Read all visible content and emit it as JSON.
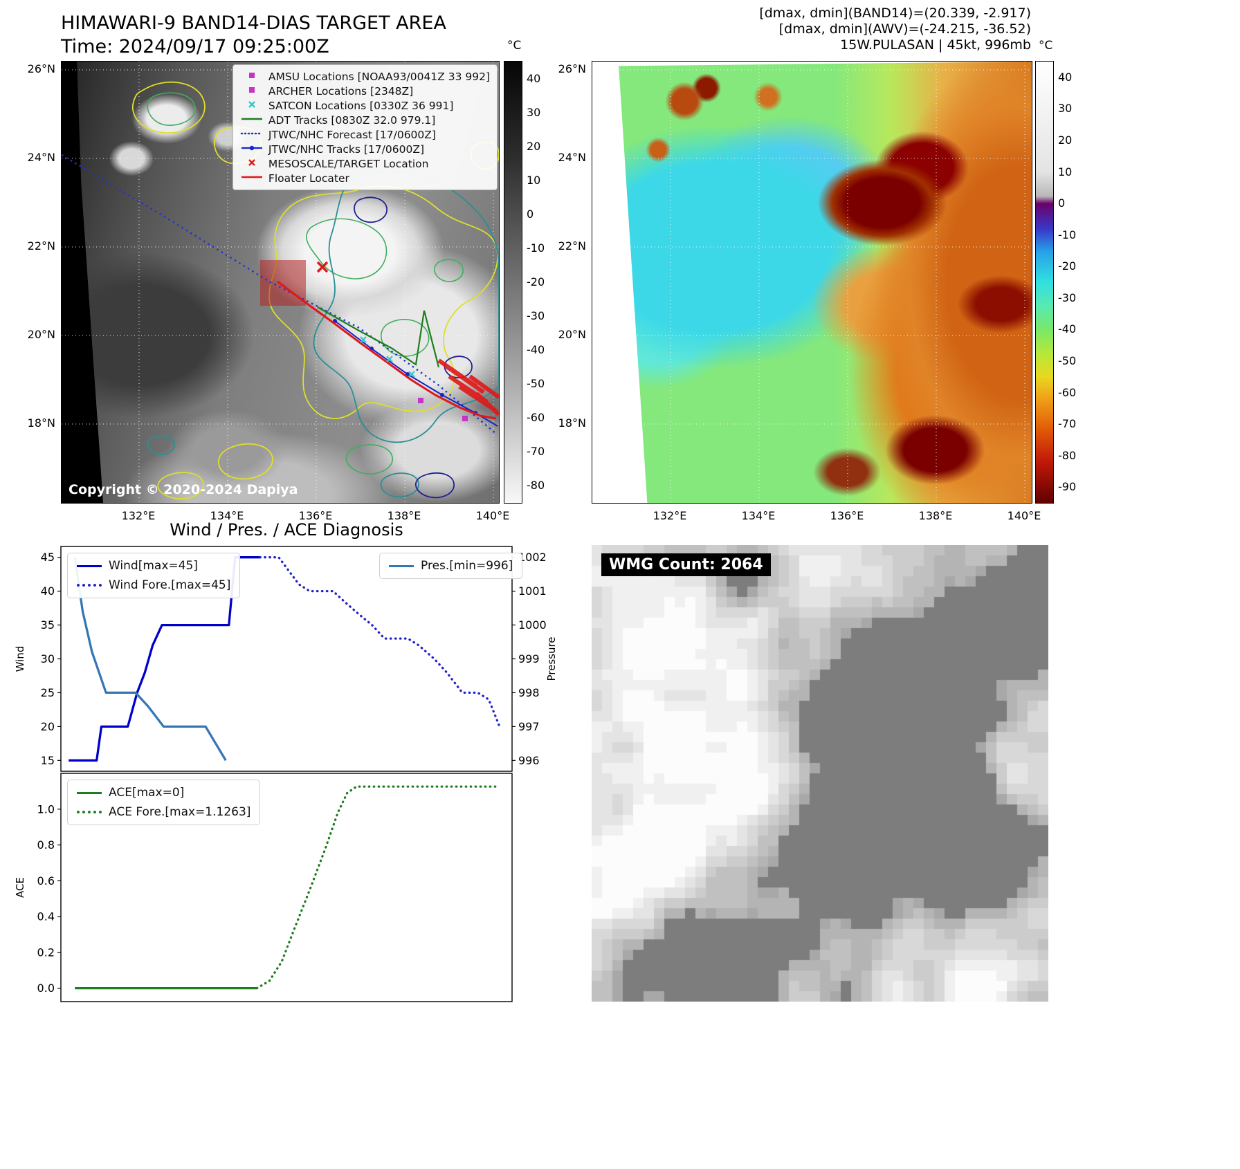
{
  "band14_panel": {
    "title": "HIMAWARI-9 BAND14-DIAS TARGET AREA",
    "subtitle": "Time: 2024/09/17 09:25:00Z",
    "copyright": "Copyright © 2020-2024 Dapiya",
    "lat_ticks": [
      "26°N",
      "24°N",
      "22°N",
      "20°N",
      "18°N"
    ],
    "lon_ticks": [
      "132°E",
      "134°E",
      "136°E",
      "138°E",
      "140°E"
    ],
    "colorbar_unit": "°C",
    "colorbar_ticks": [
      "40",
      "30",
      "20",
      "10",
      "0",
      "-10",
      "-20",
      "-30",
      "-40",
      "-50",
      "-60",
      "-70",
      "-80"
    ],
    "legend": [
      {
        "label": "AMSU Locations [NOAA93/0041Z 33 992]",
        "marker": "square",
        "color": "#c832c8"
      },
      {
        "label": "ARCHER Locations [2348Z]",
        "marker": "square",
        "color": "#c832c8"
      },
      {
        "label": "SATCON Locations [0330Z 36 991]",
        "marker": "x",
        "color": "#2ec8c8"
      },
      {
        "label": "ADT Tracks [0830Z 32.0 979.1]",
        "marker": "line",
        "color": "#1e7d1e"
      },
      {
        "label": "JTWC/NHC Forecast [17/0600Z]",
        "marker": "dotted",
        "color": "#2233cc"
      },
      {
        "label": "JTWC/NHC Tracks [17/0600Z]",
        "marker": "line-dot",
        "color": "#1525cc"
      },
      {
        "label": "MESOSCALE/TARGET Location",
        "marker": "x",
        "color": "#e01818"
      },
      {
        "label": "Floater Locater",
        "marker": "line",
        "color": "#e01818"
      }
    ]
  },
  "awv_panel": {
    "header_lines": [
      "[dmax, dmin](BAND14)=(20.339, -2.917)",
      "[dmax, dmin](AWV)=(-24.215, -36.52)",
      "15W.PULASAN | 45kt, 996mb"
    ],
    "lat_ticks": [
      "26°N",
      "24°N",
      "22°N",
      "20°N",
      "18°N"
    ],
    "lon_ticks": [
      "132°E",
      "134°E",
      "136°E",
      "138°E",
      "140°E"
    ],
    "colorbar_unit": "°C",
    "colorbar_ticks": [
      "40",
      "30",
      "20",
      "10",
      "0",
      "-10",
      "-20",
      "-30",
      "-40",
      "-50",
      "-60",
      "-70",
      "-80",
      "-90"
    ]
  },
  "wmg_panel": {
    "label": "WMG Count: 2064"
  },
  "chart_data": [
    {
      "type": "line",
      "title": "Wind / Pres. / ACE Diagnosis",
      "ylabel_left": "Wind",
      "ylabel_right": "Pressure",
      "yticks_left": [
        15,
        20,
        25,
        30,
        35,
        40,
        45
      ],
      "yticks_right": [
        996,
        997,
        998,
        999,
        1000,
        1001,
        1002
      ],
      "ylim_left": [
        13.4,
        46.6
      ],
      "ylim_right": [
        995.68,
        1002.32
      ],
      "xlim": [
        0,
        29
      ],
      "grid": false,
      "series": [
        {
          "name": "Wind[max=45]",
          "axis": "left",
          "line": "solid",
          "color": "#0000cd",
          "x": [
            0.5,
            2.3,
            2.6,
            4.3,
            4.9,
            5.4,
            5.9,
            6.5,
            10.8,
            11.2,
            12.8
          ],
          "y": [
            15,
            15,
            20,
            20,
            25,
            28,
            32,
            35,
            35,
            45,
            45
          ]
        },
        {
          "name": "Wind Fore.[max=45]",
          "axis": "left",
          "line": "dotted",
          "color": "#2222cc",
          "x": [
            12.8,
            14.0,
            15.3,
            16.0,
            17.5,
            18.2,
            19.2,
            20.0,
            20.8,
            22.3,
            23.0,
            24.0,
            24.8,
            25.8,
            26.8,
            27.5,
            28.2
          ],
          "y": [
            45,
            45,
            41,
            40,
            40,
            38.5,
            36.5,
            35,
            33,
            33,
            32,
            30,
            28,
            25,
            25,
            24,
            20
          ]
        },
        {
          "name": "Pres.[min=996]",
          "axis": "right",
          "line": "solid",
          "color": "#3577b4",
          "x": [
            0.9,
            1.4,
            2.0,
            2.9,
            4.8,
            5.6,
            6.6,
            9.3,
            10.6
          ],
          "y": [
            1002,
            1000.4,
            999.2,
            998,
            998,
            997.6,
            997,
            997,
            996
          ]
        }
      ],
      "legends": [
        {
          "pos": "top-left",
          "entries": [
            "Wind[max=45]",
            "Wind Fore.[max=45]"
          ]
        },
        {
          "pos": "top-right",
          "entries": [
            "Pres.[min=996]"
          ]
        }
      ]
    },
    {
      "type": "line",
      "ylabel_left": "ACE",
      "yticks_left": [
        0.0,
        0.2,
        0.4,
        0.6,
        0.8,
        1.0
      ],
      "ydec_left": 1,
      "ylim_left": [
        -0.075,
        1.2
      ],
      "xlim": [
        0,
        29
      ],
      "grid": false,
      "series": [
        {
          "name": "ACE[max=0]",
          "axis": "left",
          "line": "solid",
          "color": "#1e7d1e",
          "x": [
            0.9,
            12.6
          ],
          "y": [
            0,
            0
          ]
        },
        {
          "name": "ACE Fore.[max=1.1263]",
          "axis": "left",
          "line": "dotted",
          "color": "#1e7d1e",
          "x": [
            12.6,
            13.4,
            14.2,
            15.0,
            16.0,
            17.0,
            17.8,
            18.4,
            19.0,
            28.2
          ],
          "y": [
            0,
            0.04,
            0.15,
            0.33,
            0.55,
            0.78,
            0.98,
            1.09,
            1.1263,
            1.1263
          ]
        }
      ],
      "legends": [
        {
          "pos": "top-left",
          "entries": [
            "ACE[max=0]",
            "ACE Fore.[max=1.1263]"
          ]
        }
      ]
    }
  ]
}
